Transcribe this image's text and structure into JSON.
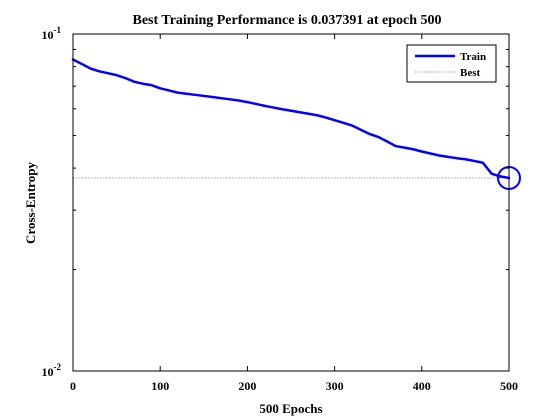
{
  "chart_data": {
    "type": "line",
    "title": "Best Training Performance is 0.037391 at epoch 500",
    "xlabel": "500 Epochs",
    "ylabel": "Cross-Entropy",
    "xlim": [
      0,
      500
    ],
    "ylim": [
      0.01,
      0.1
    ],
    "yscale": "log",
    "grid": false,
    "legend_location": "top-right",
    "x_ticks": [
      0,
      100,
      200,
      300,
      400,
      500
    ],
    "x_tick_labels": [
      "0",
      "100",
      "200",
      "300",
      "400",
      "500"
    ],
    "y_ticks": [
      0.01,
      0.1
    ],
    "y_tick_labels": [
      {
        "base": "10",
        "exp": "-2"
      },
      {
        "base": "10",
        "exp": "-1"
      }
    ],
    "series": [
      {
        "name": "Train",
        "color": "#0000ff",
        "x": [
          0,
          10,
          20,
          30,
          40,
          50,
          60,
          70,
          80,
          90,
          100,
          110,
          120,
          130,
          140,
          150,
          160,
          170,
          180,
          190,
          200,
          210,
          220,
          230,
          240,
          250,
          260,
          270,
          280,
          290,
          300,
          310,
          320,
          330,
          340,
          350,
          360,
          370,
          380,
          390,
          400,
          410,
          420,
          430,
          440,
          450,
          460,
          470,
          480,
          490,
          500
        ],
        "y": [
          0.084,
          0.0815,
          0.079,
          0.0775,
          0.0765,
          0.0755,
          0.074,
          0.0722,
          0.0712,
          0.0705,
          0.069,
          0.068,
          0.067,
          0.0665,
          0.066,
          0.0655,
          0.065,
          0.0645,
          0.064,
          0.0635,
          0.0628,
          0.062,
          0.0612,
          0.0605,
          0.0598,
          0.0592,
          0.0586,
          0.058,
          0.0574,
          0.0565,
          0.0555,
          0.0545,
          0.0535,
          0.052,
          0.0505,
          0.0495,
          0.048,
          0.0465,
          0.046,
          0.0455,
          0.0448,
          0.0442,
          0.0436,
          0.0432,
          0.0428,
          0.0425,
          0.042,
          0.0415,
          0.0385,
          0.0378,
          0.037391
        ]
      },
      {
        "name": "Best",
        "color": "#a0a0a0",
        "x": [
          0,
          500
        ],
        "y": [
          0.037391,
          0.037391
        ]
      }
    ],
    "best_point": {
      "x": 500,
      "y": 0.037391
    }
  }
}
